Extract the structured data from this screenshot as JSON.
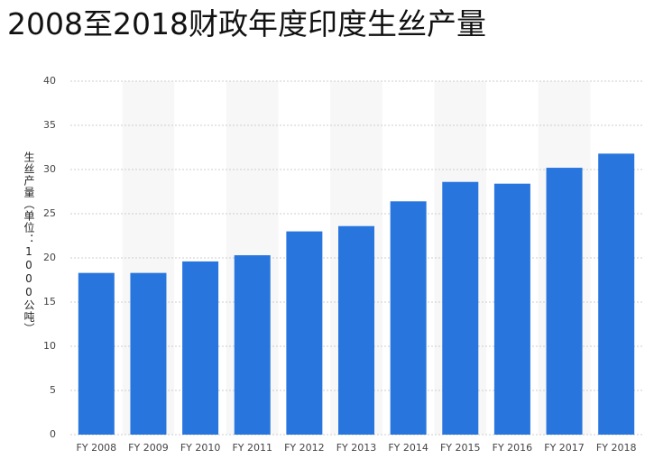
{
  "chart_data": {
    "type": "bar",
    "title": "2008至2018财政年度印度生丝产量",
    "y_label": "生丝产量（单位：1000公吨）",
    "categories": [
      "FY 2008",
      "FY 2009",
      "FY 2010",
      "FY 2011",
      "FY 2012",
      "FY 2013",
      "FY 2014",
      "FY 2015",
      "FY 2016",
      "FY 2017",
      "FY 2018"
    ],
    "values": [
      18.3,
      18.3,
      19.6,
      20.3,
      23.0,
      23.6,
      26.4,
      28.6,
      28.4,
      30.2,
      31.8
    ],
    "color": "#2876dd",
    "ylim": [
      0,
      40
    ],
    "yticks": [
      0,
      5,
      10,
      15,
      20,
      25,
      30,
      35,
      40
    ],
    "grid": true
  }
}
